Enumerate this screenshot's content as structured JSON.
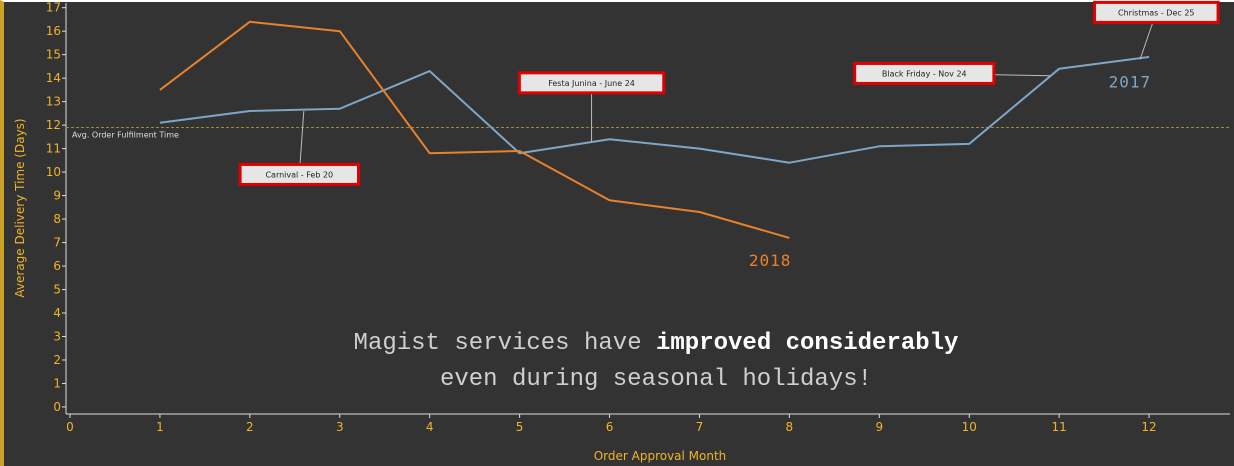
{
  "chart_data": {
    "type": "line",
    "xlabel": "Order Approval Month",
    "ylabel": "Average Delivery Time (Days)",
    "xlim": [
      0,
      12.9
    ],
    "ylim": [
      -0.3,
      17.2
    ],
    "x_ticks": [
      0,
      1,
      2,
      3,
      4,
      5,
      6,
      7,
      8,
      9,
      10,
      11,
      12
    ],
    "y_ticks": [
      0,
      1,
      2,
      3,
      4,
      5,
      6,
      7,
      8,
      9,
      10,
      11,
      12,
      13,
      14,
      15,
      16,
      17
    ],
    "grid": false,
    "series": [
      {
        "name": "2017",
        "color": "#7ea6c8",
        "x": [
          1,
          2,
          3,
          4,
          5,
          6,
          7,
          8,
          9,
          10,
          11,
          12
        ],
        "values": [
          12.1,
          12.6,
          12.7,
          14.3,
          10.8,
          11.4,
          11.0,
          10.4,
          11.1,
          11.2,
          14.4,
          14.9
        ]
      },
      {
        "name": "2018",
        "color": "#e8822a",
        "x": [
          1,
          2,
          3,
          4,
          5,
          6,
          7,
          8
        ],
        "values": [
          13.5,
          16.4,
          16.0,
          10.8,
          10.9,
          8.8,
          8.3,
          7.2
        ]
      }
    ],
    "reference_line": {
      "y": 11.9,
      "label": "Avg. Order Fulfilment Time",
      "color": "#9c8a3c"
    },
    "annotations": [
      {
        "text": "Carnival - Feb 20",
        "x": 2.6,
        "y": 12.6,
        "box_x": 2.55,
        "box_y": 9.9
      },
      {
        "text": "Festa Junina - June 24",
        "x": 5.8,
        "y": 11.3,
        "box_x": 5.8,
        "box_y": 13.8
      },
      {
        "text": "Black Friday - Nov 24",
        "x": 10.9,
        "y": 14.1,
        "box_x": 9.5,
        "box_y": 14.2
      },
      {
        "text": "Christmas - Dec 25",
        "x": 11.9,
        "y": 14.8,
        "box_x": 12.08,
        "box_y": 16.8
      }
    ],
    "message": {
      "line1_prefix": "Magist services have ",
      "line1_bold": "improved considerably",
      "line2": "even during seasonal holidays!"
    }
  }
}
